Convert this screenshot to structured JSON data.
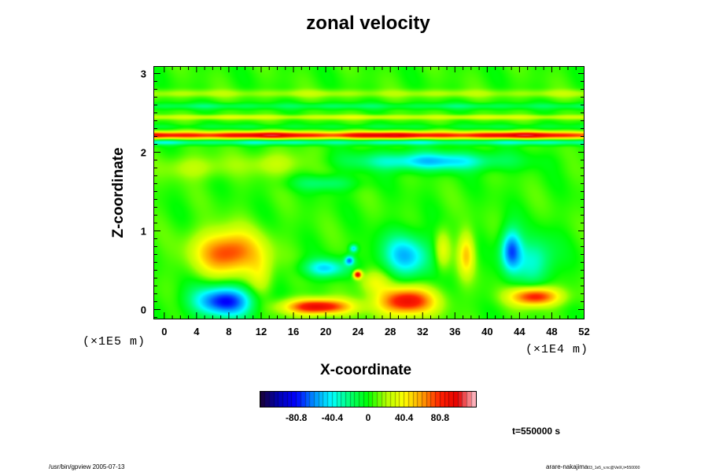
{
  "chart_data": {
    "type": "heatmap",
    "title": "zonal velocity",
    "xlabel": "X-coordinate",
    "ylabel": "Z-coordinate",
    "x_unit_label": "(×1E4 m)",
    "z_unit_label": "(×1E5 m)",
    "x_ticks": [
      "0",
      "4",
      "8",
      "12",
      "16",
      "20",
      "24",
      "28",
      "32",
      "36",
      "40",
      "44",
      "48",
      "52"
    ],
    "z_ticks": [
      "0",
      "1",
      "2",
      "3"
    ],
    "xlim": [
      -1.2,
      52
    ],
    "zlim": [
      -0.12,
      3.08
    ],
    "colorbar": {
      "tick_labels": [
        "-80.8",
        "-40.4",
        "0",
        "40.4",
        "80.8"
      ],
      "tick_values": [
        -80.8,
        -40.4,
        0,
        40.4,
        80.8
      ],
      "range": [
        -121.2,
        121.2
      ]
    },
    "background_value": 5,
    "features": [
      {
        "x": 8,
        "z": 0.72,
        "value": 75,
        "rx": 4.0,
        "rz": 0.28
      },
      {
        "x": 7.5,
        "z": 0.1,
        "value": -85,
        "rx": 3.8,
        "rz": 0.2
      },
      {
        "x": 19,
        "z": 0.03,
        "value": 95,
        "rx": 4.0,
        "rz": 0.1
      },
      {
        "x": 30,
        "z": 0.1,
        "value": 90,
        "rx": 3.5,
        "rz": 0.18
      },
      {
        "x": 30,
        "z": 0.68,
        "value": -55,
        "rx": 3.2,
        "rz": 0.28
      },
      {
        "x": 20,
        "z": 0.52,
        "value": -50,
        "rx": 2.8,
        "rz": 0.12
      },
      {
        "x": 46,
        "z": 0.16,
        "value": 85,
        "rx": 3.0,
        "rz": 0.12
      },
      {
        "x": 43,
        "z": 0.75,
        "value": -70,
        "rx": 1.3,
        "rz": 0.28
      },
      {
        "x": 46,
        "z": 0.62,
        "value": -40,
        "rx": 2.6,
        "rz": 0.3
      },
      {
        "x": 37.5,
        "z": 0.7,
        "value": 45,
        "rx": 1.0,
        "rz": 0.28
      },
      {
        "x": 34.5,
        "z": 0.75,
        "value": 35,
        "rx": 1.0,
        "rz": 0.25
      },
      {
        "x": 24,
        "z": 0.44,
        "value": 95,
        "rx": 0.5,
        "rz": 0.05
      },
      {
        "x": 23,
        "z": 0.62,
        "value": -60,
        "rx": 0.6,
        "rz": 0.06
      },
      {
        "x": 23.5,
        "z": 0.77,
        "value": -50,
        "rx": 0.5,
        "rz": 0.05
      },
      {
        "x": 33,
        "z": 1.88,
        "value": -55,
        "rx": 9.0,
        "rz": 0.12
      },
      {
        "x": 20,
        "z": 1.6,
        "value": -25,
        "rx": 4.0,
        "rz": 0.1
      },
      {
        "x": 4,
        "z": 1.8,
        "value": 20,
        "rx": 4.0,
        "rz": 0.15
      },
      {
        "x": 14,
        "z": 1.85,
        "value": 22,
        "rx": 4.0,
        "rz": 0.15
      },
      {
        "x": 26,
        "z": 0.35,
        "value": 30,
        "rx": 2.0,
        "rz": 0.15
      },
      {
        "x": 12,
        "z": 0.4,
        "value": 25,
        "rx": 1.5,
        "rz": 0.3
      }
    ],
    "bands": [
      {
        "z": 2.21,
        "value": 85,
        "half_width": 0.045
      },
      {
        "z": 2.12,
        "value": -35,
        "half_width": 0.035
      },
      {
        "z": 2.32,
        "value": -12,
        "half_width": 0.035
      },
      {
        "z": 2.44,
        "value": 25,
        "half_width": 0.03
      },
      {
        "z": 2.58,
        "value": -20,
        "half_width": 0.04
      },
      {
        "z": 2.74,
        "value": 15,
        "half_width": 0.05
      }
    ],
    "colormap_stops": [
      "#1a0033",
      "#0000b4",
      "#0000ff",
      "#0090ff",
      "#00ffff",
      "#00ff70",
      "#00ff00",
      "#b0ff00",
      "#ffff00",
      "#ffa000",
      "#ff2000",
      "#e60000",
      "#ffc8d2"
    ]
  },
  "timestamp_label": "t=550000 s",
  "footer_left": "/usr/bin/gpview 2005-07-13",
  "footer_right": "arare-nakajima",
  "footer_right_sub": "03_1e5_v.nc@VelX,t=550000"
}
